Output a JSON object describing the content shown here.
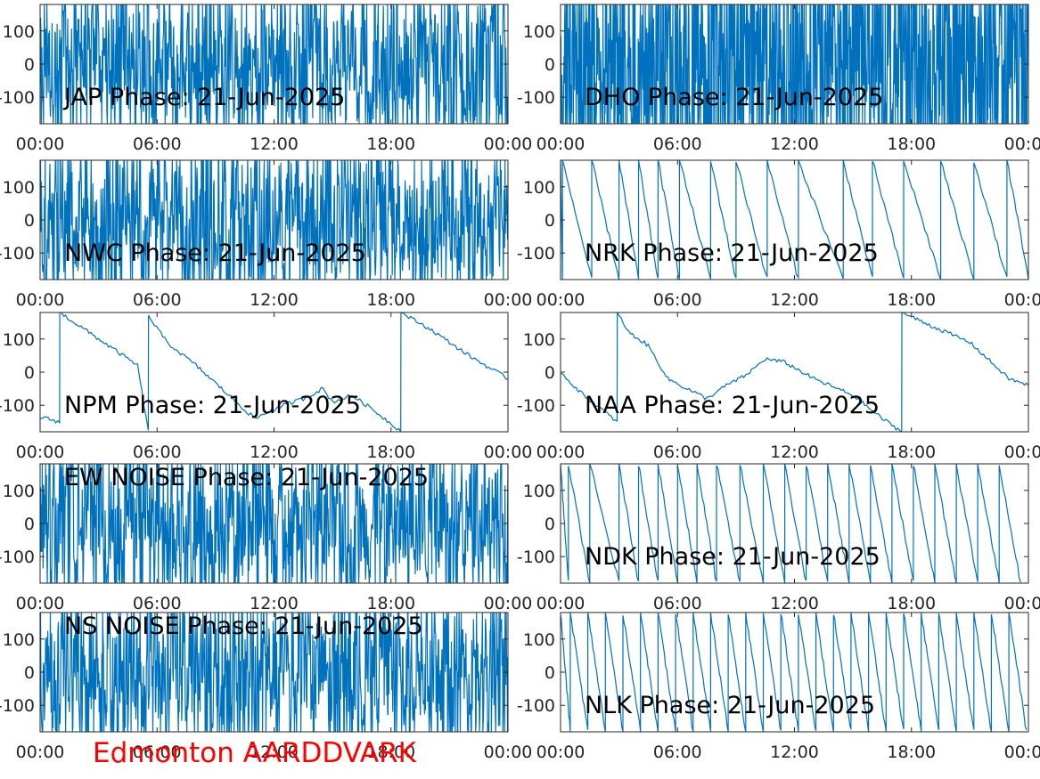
{
  "figure": {
    "footer": "Edmonton AARDDVARK",
    "footer_color": "#ff0000",
    "line_color": "#0072bd"
  },
  "chart_data": [
    {
      "type": "line",
      "panel": "JAP",
      "title": "JAP Phase: 21-Jun-2025",
      "pattern": "noise",
      "ylim": [
        -180,
        180
      ],
      "xlim": [
        "00:00",
        "24:00"
      ],
      "yticks": [
        "-100",
        "0",
        "100"
      ],
      "xticks": [
        "00:00",
        "06:00",
        "12:00",
        "18:00",
        "00:00"
      ],
      "grid": false
    },
    {
      "type": "line",
      "panel": "DHO",
      "title": "DHO Phase: 21-Jun-2025",
      "pattern": "noise-dense",
      "ylim": [
        -180,
        180
      ],
      "xlim": [
        "00:00",
        "24:00"
      ],
      "yticks": [
        "-100",
        "0",
        "100"
      ],
      "xticks": [
        "00:00",
        "06:00",
        "12:00",
        "18:00",
        "00:00"
      ],
      "grid": false
    },
    {
      "type": "line",
      "panel": "NWC",
      "title": "NWC Phase: 21-Jun-2025",
      "pattern": "noise",
      "ylim": [
        -180,
        180
      ],
      "xlim": [
        "00:00",
        "24:00"
      ],
      "yticks": [
        "-100",
        "0",
        "100"
      ],
      "xticks": [
        "00:00",
        "06:00",
        "12:00",
        "18:00",
        "00:00"
      ],
      "grid": false
    },
    {
      "type": "line",
      "panel": "NRK",
      "title": "NRK Phase: 21-Jun-2025",
      "pattern": "sawtooth",
      "wrap_times_h": [
        0.1,
        1.6,
        3.0,
        4.0,
        5.0,
        6.1,
        7.7,
        9.0,
        10.6,
        12.2,
        14.5,
        16.0,
        17.6,
        19.5,
        21.2,
        22.9,
        24.0
      ],
      "ylim": [
        -180,
        180
      ],
      "xlim": [
        "00:00",
        "24:00"
      ],
      "yticks": [
        "-100",
        "0",
        "100"
      ],
      "xticks": [
        "00:00",
        "06:00",
        "12:00",
        "18:00",
        "00:00"
      ],
      "grid": false
    },
    {
      "type": "line",
      "panel": "NPM",
      "title": "NPM Phase: 21-Jun-2025",
      "pattern": "drift",
      "points": [
        [
          0,
          -135
        ],
        [
          1.0,
          -150
        ],
        [
          1.01,
          180
        ],
        [
          3.5,
          80
        ],
        [
          5.0,
          20
        ],
        [
          5.55,
          -180
        ],
        [
          5.56,
          170
        ],
        [
          6.5,
          90
        ],
        [
          8.0,
          20
        ],
        [
          9.5,
          -60
        ],
        [
          11.0,
          -140
        ],
        [
          12.5,
          -100
        ],
        [
          13.5,
          -80
        ],
        [
          14.5,
          -50
        ],
        [
          15.0,
          -90
        ],
        [
          16.0,
          -70
        ],
        [
          17.0,
          -110
        ],
        [
          18.5,
          -178
        ],
        [
          18.51,
          180
        ],
        [
          20.0,
          130
        ],
        [
          22.0,
          50
        ],
        [
          24.0,
          -20
        ]
      ],
      "ylim": [
        -180,
        180
      ],
      "xlim": [
        "00:00",
        "24:00"
      ],
      "yticks": [
        "-100",
        "0",
        "100"
      ],
      "xticks": [
        "00:00",
        "06:00",
        "12:00",
        "18:00",
        "00:00"
      ],
      "grid": false
    },
    {
      "type": "line",
      "panel": "NAA",
      "title": "NAA Phase: 21-Jun-2025",
      "pattern": "drift",
      "points": [
        [
          0,
          0
        ],
        [
          1.0,
          -60
        ],
        [
          2.9,
          -150
        ],
        [
          2.91,
          180
        ],
        [
          3.5,
          120
        ],
        [
          4.5,
          80
        ],
        [
          5.5,
          -20
        ],
        [
          6.5,
          -50
        ],
        [
          7.5,
          -80
        ],
        [
          8.5,
          -40
        ],
        [
          9.5,
          -10
        ],
        [
          10.5,
          40
        ],
        [
          11.5,
          30
        ],
        [
          13.0,
          -20
        ],
        [
          15.0,
          -70
        ],
        [
          16.5,
          -140
        ],
        [
          17.5,
          -180
        ],
        [
          17.51,
          180
        ],
        [
          19.0,
          140
        ],
        [
          21.0,
          90
        ],
        [
          23.0,
          -20
        ],
        [
          24.0,
          -40
        ]
      ],
      "ylim": [
        -180,
        180
      ],
      "xlim": [
        "00:00",
        "24:00"
      ],
      "yticks": [
        "-100",
        "0",
        "100"
      ],
      "xticks": [
        "00:00",
        "06:00",
        "12:00",
        "18:00",
        "00:00"
      ],
      "grid": false
    },
    {
      "type": "line",
      "panel": "EW NOISE",
      "title": "EW NOISE Phase: 21-Jun-2025",
      "pattern": "noise",
      "ylim": [
        -180,
        180
      ],
      "xlim": [
        "00:00",
        "24:00"
      ],
      "yticks": [
        "-100",
        "0",
        "100"
      ],
      "xticks": [
        "00:00",
        "06:00",
        "12:00",
        "18:00",
        "00:00"
      ],
      "grid": false
    },
    {
      "type": "line",
      "panel": "NDK",
      "title": "NDK Phase: 21-Jun-2025",
      "pattern": "sawtooth",
      "wrap_times_h": [
        0.4,
        1.5,
        3.0,
        4.0,
        5.0,
        6.0,
        7.0,
        8.0,
        9.2,
        10.4,
        11.5,
        12.6,
        13.7,
        14.8,
        15.9,
        17.0,
        18.1,
        19.2,
        20.3,
        21.4,
        22.5,
        23.6
      ],
      "ylim": [
        -180,
        180
      ],
      "xlim": [
        "00:00",
        "24:00"
      ],
      "yticks": [
        "-100",
        "0",
        "100"
      ],
      "xticks": [
        "00:00",
        "06:00",
        "12:00",
        "18:00",
        "00:00"
      ],
      "grid": false
    },
    {
      "type": "line",
      "panel": "NS NOISE",
      "title": "NS NOISE Phase: 21-Jun-2025",
      "pattern": "noise",
      "ylim": [
        -180,
        180
      ],
      "xlim": [
        "00:00",
        "24:00"
      ],
      "yticks": [
        "-100",
        "0",
        "100"
      ],
      "xticks": [
        "00:00",
        "06:00",
        "12:00",
        "18:00",
        "00:00"
      ],
      "grid": false
    },
    {
      "type": "line",
      "panel": "NLK",
      "title": "NLK Phase: 21-Jun-2025",
      "pattern": "sawtooth",
      "wrap_times_h": [
        0.5,
        1.4,
        2.3,
        3.2,
        4.1,
        5.0,
        5.9,
        6.8,
        7.7,
        8.6,
        9.5,
        10.4,
        11.3,
        12.2,
        13.1,
        14.0,
        14.9,
        15.8,
        16.7,
        17.6,
        18.5,
        19.4,
        20.3,
        21.2,
        22.1,
        23.0,
        23.9
      ],
      "ylim": [
        -180,
        180
      ],
      "xlim": [
        "00:00",
        "24:00"
      ],
      "yticks": [
        "-100",
        "0",
        "100"
      ],
      "xticks": [
        "00:00",
        "06:00",
        "12:00",
        "18:00",
        "00:00"
      ],
      "grid": false
    }
  ]
}
